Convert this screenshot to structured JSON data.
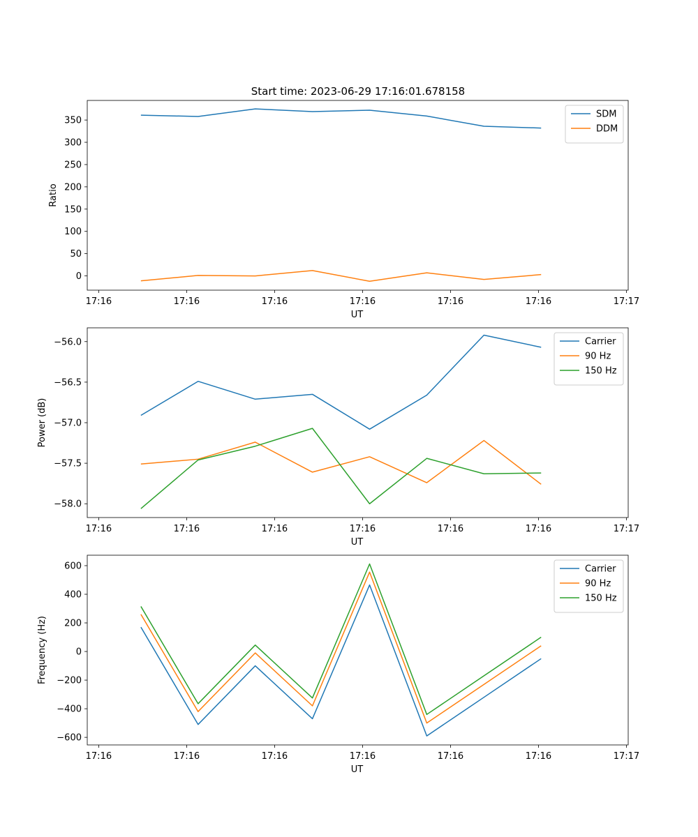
{
  "figure": {
    "title": "Start time: 2023-06-29 17:16:01.678158"
  },
  "chart_data": [
    {
      "type": "line",
      "title": "Start time: 2023-06-29 17:16:01.678158",
      "xlabel": "UT",
      "ylabel": "Ratio",
      "x_tick_labels": [
        "17:16",
        "17:16",
        "17:16",
        "17:16",
        "17:16",
        "17:16",
        "17:17"
      ],
      "y_ticks": [
        0,
        50,
        100,
        150,
        200,
        250,
        300,
        350
      ],
      "y_tick_labels": [
        "0",
        "50",
        "100",
        "150",
        "200",
        "250",
        "300",
        "350"
      ],
      "ylim": [
        -32,
        394
      ],
      "x_sample_seconds": [
        2.18,
        2.83,
        3.48,
        4.13,
        4.78,
        5.43,
        6.08,
        6.73
      ],
      "x_tick_seconds": [
        1.7,
        2.7,
        3.7,
        4.7,
        5.7,
        6.7,
        7.7
      ],
      "xlim": [
        1.57,
        7.72
      ],
      "legend_position": "upper right",
      "grid": false,
      "series": [
        {
          "name": "SDM",
          "color": "#1f77b4",
          "values": [
            361,
            358,
            375,
            369,
            372,
            359,
            336,
            332
          ]
        },
        {
          "name": "DDM",
          "color": "#ff7f0e",
          "values": [
            -11,
            1,
            0,
            12,
            -12,
            7,
            -8,
            3
          ]
        }
      ]
    },
    {
      "type": "line",
      "title": "",
      "xlabel": "UT",
      "ylabel": "Power (dB)",
      "x_tick_labels": [
        "17:16",
        "17:16",
        "17:16",
        "17:16",
        "17:16",
        "17:16",
        "17:17"
      ],
      "y_ticks": [
        -58.0,
        -57.5,
        -57.0,
        -56.5,
        -56.0
      ],
      "y_tick_labels": [
        "−58.0",
        "−57.5",
        "−57.0",
        "−56.5",
        "−56.0"
      ],
      "ylim": [
        -58.17,
        -55.83
      ],
      "x_sample_seconds": [
        2.18,
        2.83,
        3.48,
        4.13,
        4.78,
        5.43,
        6.08,
        6.73
      ],
      "x_tick_seconds": [
        1.7,
        2.7,
        3.7,
        4.7,
        5.7,
        6.7,
        7.7
      ],
      "xlim": [
        1.57,
        7.72
      ],
      "legend_position": "upper right",
      "grid": false,
      "series": [
        {
          "name": "Carrier",
          "color": "#1f77b4",
          "values": [
            -56.91,
            -56.49,
            -56.71,
            -56.65,
            -57.08,
            -56.66,
            -55.92,
            -56.07
          ]
        },
        {
          "name": "90 Hz",
          "color": "#ff7f0e",
          "values": [
            -57.51,
            -57.45,
            -57.24,
            -57.61,
            -57.42,
            -57.74,
            -57.22,
            -57.76
          ]
        },
        {
          "name": "150 Hz",
          "color": "#2ca02c",
          "values": [
            -58.06,
            -57.46,
            -57.29,
            -57.07,
            -58.0,
            -57.44,
            -57.63,
            -57.62
          ]
        }
      ]
    },
    {
      "type": "line",
      "title": "",
      "xlabel": "UT",
      "ylabel": "Frequency (Hz)",
      "x_tick_labels": [
        "17:16",
        "17:16",
        "17:16",
        "17:16",
        "17:16",
        "17:16",
        "17:17"
      ],
      "y_ticks": [
        -600,
        -400,
        -200,
        0,
        200,
        400,
        600
      ],
      "y_tick_labels": [
        "−600",
        "−400",
        "−200",
        "0",
        "200",
        "400",
        "600"
      ],
      "ylim": [
        -653,
        673
      ],
      "x_sample_seconds": [
        2.18,
        2.83,
        3.48,
        4.13,
        4.78,
        5.43,
        6.08,
        6.73
      ],
      "x_tick_seconds": [
        1.7,
        2.7,
        3.7,
        4.7,
        5.7,
        6.7,
        7.7
      ],
      "xlim": [
        1.57,
        7.72
      ],
      "legend_position": "upper right",
      "grid": false,
      "series": [
        {
          "name": "Carrier",
          "color": "#1f77b4",
          "values": [
            170,
            -510,
            -100,
            -470,
            465,
            -590,
            -320,
            -50
          ]
        },
        {
          "name": "90 Hz",
          "color": "#ff7f0e",
          "values": [
            260,
            -420,
            -10,
            -380,
            555,
            -500,
            -230,
            40
          ]
        },
        {
          "name": "150 Hz",
          "color": "#2ca02c",
          "values": [
            315,
            -365,
            45,
            -325,
            612,
            -440,
            -170,
            100
          ]
        }
      ]
    }
  ]
}
